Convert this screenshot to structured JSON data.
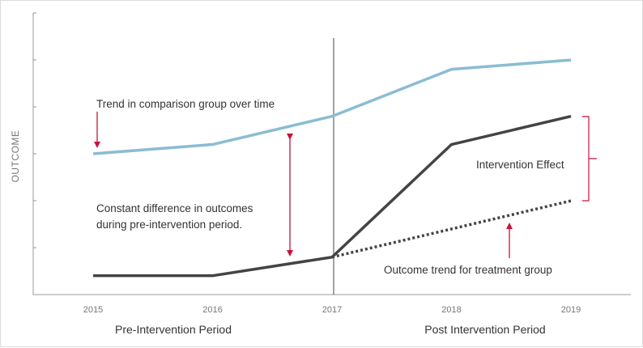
{
  "chart_data": {
    "type": "line",
    "title": "",
    "xlabel": "",
    "ylabel": "OUTCOME",
    "categories": [
      "2015",
      "2016",
      "2017",
      "2018",
      "2019"
    ],
    "ylim": [
      0,
      1
    ],
    "grid": false,
    "series": [
      {
        "name": "",
        "values": [
          0.5,
          0.533,
          0.633,
          0.8,
          0.833
        ],
        "color": "#8bbcd2",
        "style": "solid"
      },
      {
        "name": "",
        "values": [
          0.067,
          0.067,
          0.133,
          0.533,
          0.633
        ],
        "color": "#444444",
        "style": "solid"
      },
      {
        "name": "",
        "values": [
          null,
          null,
          0.133,
          0.233,
          0.333
        ],
        "color": "#444444",
        "style": "dotted"
      }
    ],
    "intervention_year": "2017",
    "periods": {
      "pre": "Pre-Intervention Period",
      "post": "Post Intervention Period"
    },
    "annotations": {
      "comparison_trend": "Trend in comparison group over time",
      "constant_diff_line1": "Constant difference in outcomes",
      "constant_diff_line2": "during pre-intervention period.",
      "intervention_effect": "Intervention Effect",
      "treatment_trend": "Outcome trend for treatment group"
    },
    "colors": {
      "comparison": "#8bbcd2",
      "treatment": "#444444",
      "arrow": "#c8123c",
      "axis": "#999999"
    }
  }
}
